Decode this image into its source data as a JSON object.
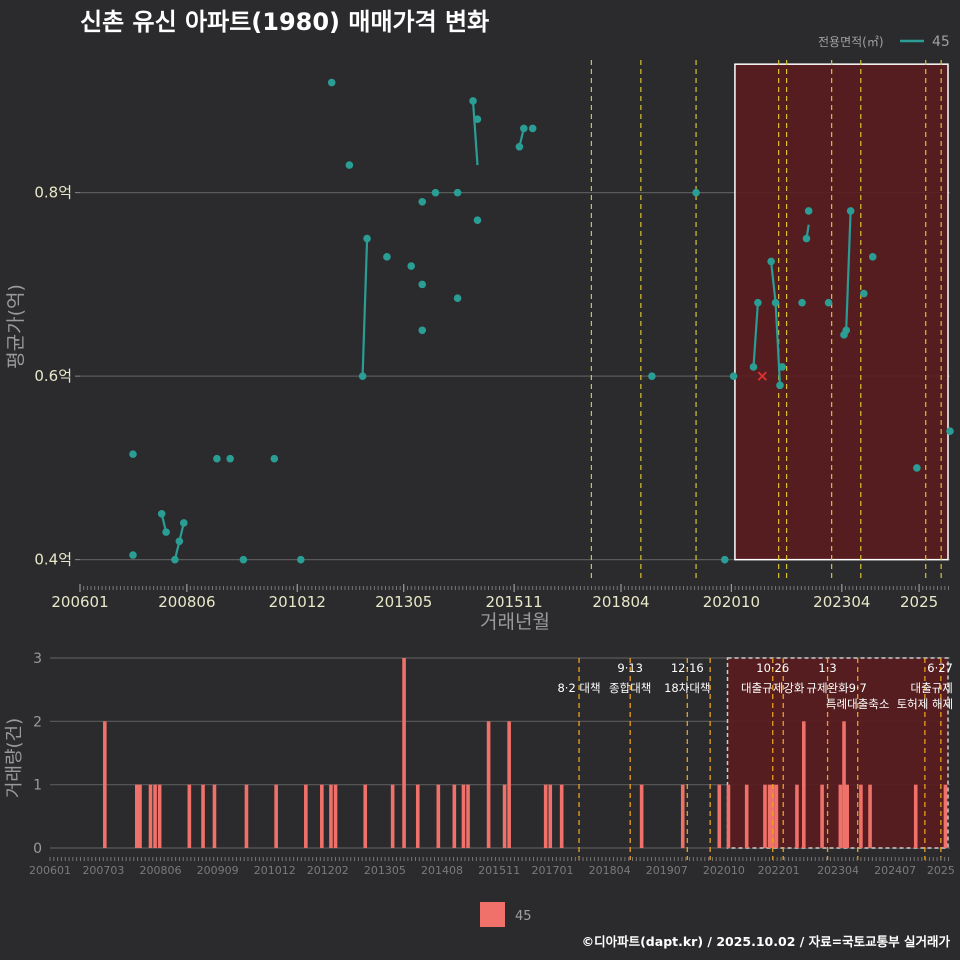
{
  "title": "신촌 유신 아파트(1980) 매매가격 변화",
  "footer": "©디아파트(dapt.kr) / 2025.10.02 / 자료=국토교통부 실거래가",
  "colors": {
    "bg": "#2b2b2d",
    "line": "#2a9d95",
    "bar": "#f0706a",
    "policy": "#d8c433",
    "policy_bottom": "#e8a020",
    "highlight": "#5a1c1e",
    "grid": "#5a5a5a"
  },
  "legend": {
    "title": "전용면적(㎡)",
    "series_label": "45",
    "bottom_label": "45"
  },
  "chart_data": [
    {
      "type": "line",
      "title": "신촌 유신 아파트(1980) 매매가격 변화",
      "xlabel": "거래년월",
      "ylabel": "평균가(억)",
      "ylim": [
        0.38,
        0.95
      ],
      "xlim": [
        2006.0,
        2025.7
      ],
      "y_ticks": [
        0.4,
        0.6,
        0.8
      ],
      "y_tick_labels": [
        "0.4억",
        "0.6억",
        "0.8억"
      ],
      "x_ticks": [
        2006.0,
        2008.42,
        2010.92,
        2013.33,
        2015.83,
        2018.25,
        2020.75,
        2023.25,
        2025.0
      ],
      "x_tick_labels": [
        "200601",
        "200806",
        "201012",
        "201305",
        "201511",
        "201804",
        "202010",
        "202304",
        "2025"
      ],
      "policy_lines": [
        2017.58,
        2018.7,
        2019.95,
        2021.82,
        2022.0,
        2023.02,
        2023.68,
        2025.15,
        2025.5
      ],
      "highlight_range": [
        2020.83,
        2025.7,
        0.4,
        0.94
      ],
      "marker": {
        "x": 2021.45,
        "y": 0.6,
        "symbol": "x"
      },
      "series": [
        {
          "name": "45",
          "points": [
            [
              2007.2,
              0.515
            ],
            [
              2007.2,
              0.405
            ],
            [
              2007.85,
              0.45
            ],
            [
              2007.95,
              0.43
            ],
            [
              2008.15,
              0.4
            ],
            [
              2008.25,
              0.42
            ],
            [
              2008.35,
              0.44
            ],
            [
              2009.1,
              0.51
            ],
            [
              2009.4,
              0.51
            ],
            [
              2009.7,
              0.4
            ],
            [
              2010.4,
              0.51
            ],
            [
              2011.0,
              0.4
            ],
            [
              2011.7,
              0.92
            ],
            [
              2012.1,
              0.83
            ],
            [
              2012.4,
              0.6
            ],
            [
              2012.5,
              0.75
            ],
            [
              2012.95,
              0.73
            ],
            [
              2013.5,
              0.72
            ],
            [
              2013.75,
              0.7
            ],
            [
              2013.75,
              0.65
            ],
            [
              2013.75,
              0.79
            ],
            [
              2014.05,
              0.8
            ],
            [
              2014.55,
              0.8
            ],
            [
              2014.55,
              0.685
            ],
            [
              2014.9,
              0.9
            ],
            [
              2015.0,
              0.88
            ],
            [
              2015.0,
              0.77
            ],
            [
              2015.95,
              0.85
            ],
            [
              2016.05,
              0.87
            ],
            [
              2016.25,
              0.87
            ],
            [
              2018.95,
              0.6
            ],
            [
              2019.95,
              0.8
            ],
            [
              2020.6,
              0.4
            ],
            [
              2020.8,
              0.6
            ],
            [
              2021.25,
              0.61
            ],
            [
              2021.35,
              0.68
            ],
            [
              2021.65,
              0.725
            ],
            [
              2021.75,
              0.68
            ],
            [
              2021.85,
              0.59
            ],
            [
              2021.9,
              0.61
            ],
            [
              2022.35,
              0.68
            ],
            [
              2022.45,
              0.75
            ],
            [
              2022.5,
              0.78
            ],
            [
              2022.95,
              0.68
            ],
            [
              2023.3,
              0.645
            ],
            [
              2023.35,
              0.65
            ],
            [
              2023.45,
              0.78
            ],
            [
              2023.75,
              0.69
            ],
            [
              2023.95,
              0.73
            ],
            [
              2024.95,
              0.5
            ],
            [
              2025.7,
              0.54
            ]
          ],
          "segments": [
            [
              [
                2007.85,
                0.45
              ],
              [
                2007.95,
                0.43
              ]
            ],
            [
              [
                2008.15,
                0.4
              ],
              [
                2008.25,
                0.42
              ],
              [
                2008.35,
                0.44
              ]
            ],
            [
              [
                2012.4,
                0.6
              ],
              [
                2012.5,
                0.75
              ]
            ],
            [
              [
                2014.9,
                0.9
              ],
              [
                2015.0,
                0.83
              ]
            ],
            [
              [
                2015.95,
                0.85
              ],
              [
                2016.05,
                0.87
              ]
            ],
            [
              [
                2021.25,
                0.61
              ],
              [
                2021.35,
                0.68
              ]
            ],
            [
              [
                2021.65,
                0.725
              ],
              [
                2021.75,
                0.68
              ],
              [
                2021.85,
                0.59
              ]
            ],
            [
              [
                2022.45,
                0.75
              ],
              [
                2022.5,
                0.765
              ]
            ],
            [
              [
                2023.35,
                0.65
              ],
              [
                2023.45,
                0.78
              ]
            ]
          ]
        }
      ]
    },
    {
      "type": "bar",
      "ylabel": "거래량(건)",
      "ylim": [
        0,
        3
      ],
      "y_ticks": [
        0,
        1,
        2,
        3
      ],
      "xlim": [
        2006.0,
        2025.7
      ],
      "x_ticks": [
        2006.0,
        2007.17,
        2008.42,
        2009.67,
        2010.92,
        2012.08,
        2013.33,
        2014.58,
        2015.83,
        2017.0,
        2018.25,
        2019.5,
        2020.75,
        2021.95,
        2023.25,
        2024.5,
        2025.5
      ],
      "x_tick_labels": [
        "200601",
        "200703",
        "200806",
        "200909",
        "201012",
        "201202",
        "201305",
        "201408",
        "201511",
        "201701",
        "201804",
        "201907",
        "202010",
        "202201",
        "202304",
        "202407",
        "2025"
      ],
      "policy_lines": [
        2017.58,
        2018.7,
        2019.95,
        2020.45,
        2021.82,
        2022.05,
        2023.02,
        2023.68,
        2025.15,
        2025.5
      ],
      "highlight_range": [
        2020.83,
        2025.7
      ],
      "annotations": [
        {
          "x": 2017.58,
          "row": 1,
          "text": "8·2 대책"
        },
        {
          "x": 2018.7,
          "row": 0,
          "text": "9·13"
        },
        {
          "x": 2018.7,
          "row": 1,
          "text": "종합대책"
        },
        {
          "x": 2019.95,
          "row": 0,
          "text": "12·16"
        },
        {
          "x": 2019.95,
          "row": 1,
          "text": "18차대책"
        },
        {
          "x": 2021.82,
          "row": 0,
          "text": "10·26"
        },
        {
          "x": 2021.82,
          "row": 1,
          "text": "대출규제강화"
        },
        {
          "x": 2023.02,
          "row": 0,
          "text": "1·3"
        },
        {
          "x": 2023.02,
          "row": 1,
          "text": "규제완화"
        },
        {
          "x": 2023.68,
          "row": 1,
          "text": "9·7"
        },
        {
          "x": 2023.68,
          "row": 2,
          "text": "특례대출축소"
        },
        {
          "x": 2025.15,
          "row": 2,
          "text": "토허제 해제"
        },
        {
          "x": 2025.5,
          "row": 0,
          "text": "6·27"
        },
        {
          "x": 2025.5,
          "row": 1,
          "text": "대출규제"
        }
      ],
      "series": [
        {
          "name": "45",
          "bars": [
            [
              2007.2,
              2
            ],
            [
              2007.9,
              1
            ],
            [
              2007.97,
              1
            ],
            [
              2008.2,
              1
            ],
            [
              2008.3,
              1
            ],
            [
              2008.4,
              1
            ],
            [
              2009.05,
              1
            ],
            [
              2009.35,
              1
            ],
            [
              2009.6,
              1
            ],
            [
              2010.3,
              1
            ],
            [
              2010.95,
              1
            ],
            [
              2011.6,
              1
            ],
            [
              2011.95,
              1
            ],
            [
              2012.15,
              1
            ],
            [
              2012.25,
              1
            ],
            [
              2012.9,
              1
            ],
            [
              2013.5,
              1
            ],
            [
              2013.75,
              3
            ],
            [
              2014.05,
              1
            ],
            [
              2014.5,
              1
            ],
            [
              2014.85,
              1
            ],
            [
              2015.05,
              1
            ],
            [
              2015.15,
              1
            ],
            [
              2015.6,
              2
            ],
            [
              2015.95,
              1
            ],
            [
              2016.05,
              2
            ],
            [
              2016.85,
              1
            ],
            [
              2016.95,
              1
            ],
            [
              2017.2,
              1
            ],
            [
              2018.95,
              1
            ],
            [
              2019.85,
              1
            ],
            [
              2020.65,
              1
            ],
            [
              2020.85,
              1
            ],
            [
              2021.25,
              1
            ],
            [
              2021.65,
              1
            ],
            [
              2021.75,
              1
            ],
            [
              2021.82,
              1
            ],
            [
              2021.9,
              1
            ],
            [
              2022.35,
              1
            ],
            [
              2022.5,
              2
            ],
            [
              2022.9,
              1
            ],
            [
              2023.3,
              1
            ],
            [
              2023.38,
              2
            ],
            [
              2023.45,
              1
            ],
            [
              2023.75,
              1
            ],
            [
              2023.95,
              1
            ],
            [
              2024.95,
              1
            ],
            [
              2025.6,
              1
            ]
          ]
        }
      ]
    }
  ]
}
